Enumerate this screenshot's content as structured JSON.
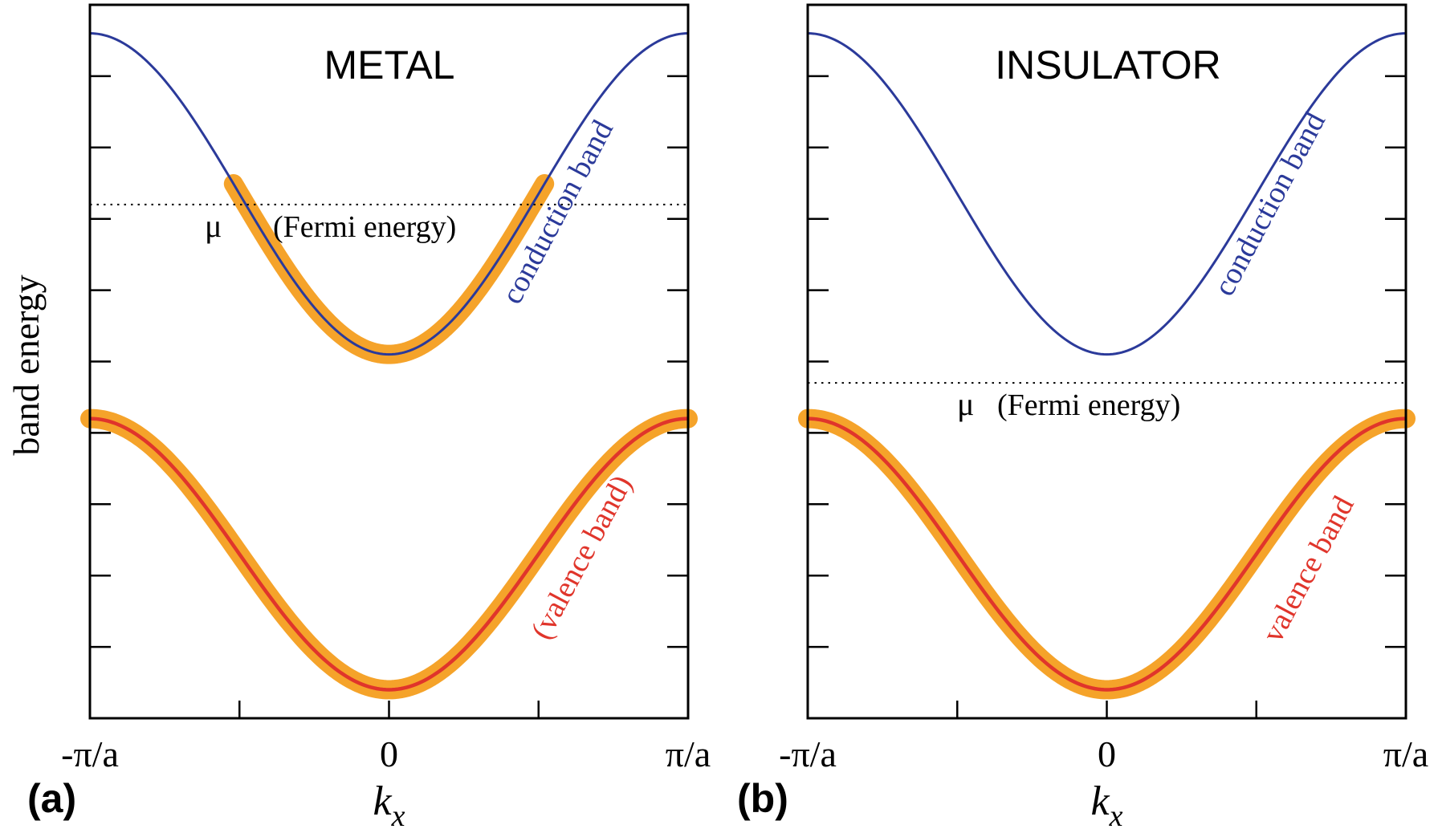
{
  "figure": {
    "ylabel": "band energy"
  },
  "chart_data": [
    {
      "type": "line",
      "panel_label": "(a)",
      "title": "METAL",
      "xlabel": "k",
      "xlabel_subscript": "x",
      "ylabel": "band energy",
      "xlim": [
        -1,
        1
      ],
      "ylim": [
        0,
        1
      ],
      "x_tick_labels": [
        "-π/a",
        "0",
        "π/a"
      ],
      "x_tick_positions": [
        -1,
        -0.5,
        0,
        0.5,
        1
      ],
      "y_tick_positions": [
        0.1,
        0.2,
        0.3,
        0.4,
        0.5,
        0.6,
        0.7,
        0.8,
        0.9
      ],
      "grid": false,
      "fermi_level": 0.72,
      "fermi_label_symbol": "μ",
      "fermi_label_text": "(Fermi energy)",
      "series": [
        {
          "label": "conduction band",
          "color": "#2b3a9a",
          "min": 0.51,
          "max": 0.96,
          "occupied_range": [
            -0.52,
            0.52
          ]
        },
        {
          "label": "(valence band)",
          "color": "#e0352b",
          "min": 0.04,
          "max": 0.42,
          "occupied_range": [
            -1,
            1
          ]
        }
      ],
      "occupied_color": "#f5a32a"
    },
    {
      "type": "line",
      "panel_label": "(b)",
      "title": "INSULATOR",
      "xlabel": "k",
      "xlabel_subscript": "x",
      "xlim": [
        -1,
        1
      ],
      "ylim": [
        0,
        1
      ],
      "x_tick_labels": [
        "-π/a",
        "0",
        "π/a"
      ],
      "x_tick_positions": [
        -1,
        -0.5,
        0,
        0.5,
        1
      ],
      "y_tick_positions": [
        0.1,
        0.2,
        0.3,
        0.4,
        0.5,
        0.6,
        0.7,
        0.8,
        0.9
      ],
      "grid": false,
      "fermi_level": 0.47,
      "fermi_label_symbol": "μ",
      "fermi_label_text": "(Fermi energy)",
      "series": [
        {
          "label": "conduction band",
          "color": "#2b3a9a",
          "min": 0.51,
          "max": 0.96,
          "occupied_range": null
        },
        {
          "label": "valence band",
          "color": "#e0352b",
          "min": 0.04,
          "max": 0.42,
          "occupied_range": [
            -1,
            1
          ]
        }
      ],
      "occupied_color": "#f5a32a"
    }
  ]
}
